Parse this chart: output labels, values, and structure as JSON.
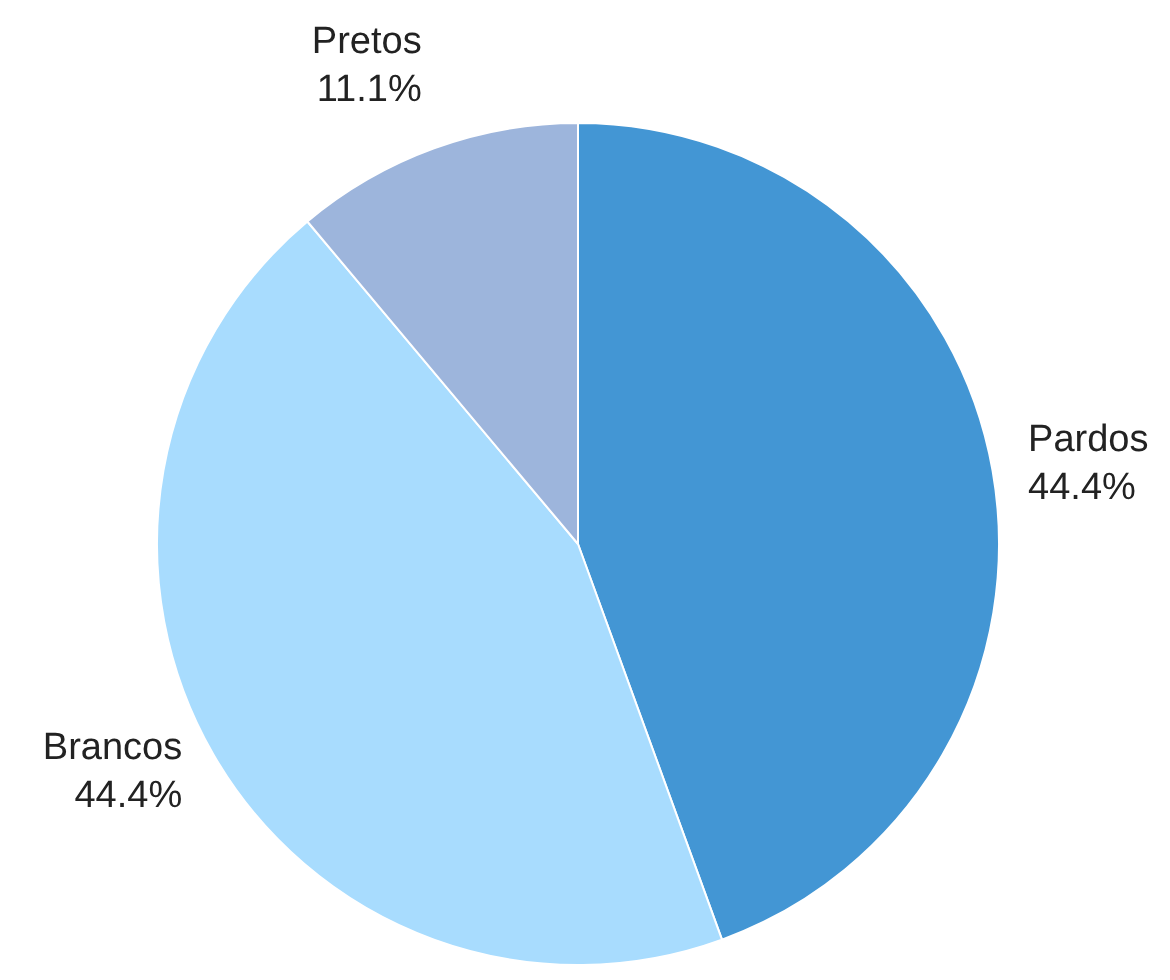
{
  "chart_data": {
    "type": "pie",
    "categories": [
      "Pardos",
      "Brancos",
      "Pretos"
    ],
    "values": [
      44.4,
      44.4,
      11.1
    ],
    "value_labels": [
      "44.4%",
      "44.4%",
      "11.1%"
    ],
    "colors": [
      "#4396d4",
      "#a8dcfe",
      "#9db5dc"
    ],
    "legend": false
  }
}
